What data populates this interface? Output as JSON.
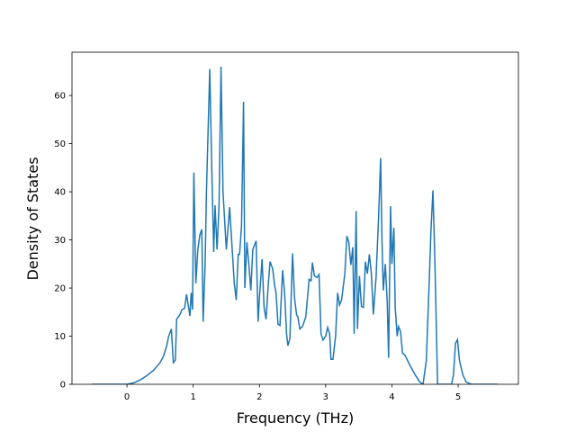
{
  "chart_data": {
    "type": "line",
    "xlabel": "Frequency (THz)",
    "ylabel": "Density of States",
    "xlim": [
      -0.83,
      5.91
    ],
    "ylim": [
      0,
      69
    ],
    "xticks": [
      0,
      1,
      2,
      3,
      4,
      5
    ],
    "yticks": [
      0,
      10,
      20,
      30,
      40,
      50,
      60
    ],
    "color": "#1f77b4",
    "x": [
      -0.53,
      0,
      0.1,
      0.2,
      0.3,
      0.4,
      0.5,
      0.55,
      0.6,
      0.63,
      0.67,
      0.7,
      0.73,
      0.75,
      0.8,
      0.83,
      0.87,
      0.9,
      0.93,
      0.95,
      0.97,
      0.99,
      1.01,
      1.04,
      1.07,
      1.1,
      1.13,
      1.15,
      1.18,
      1.2,
      1.25,
      1.28,
      1.31,
      1.33,
      1.36,
      1.39,
      1.42,
      1.45,
      1.5,
      1.55,
      1.58,
      1.62,
      1.65,
      1.68,
      1.7,
      1.73,
      1.76,
      1.78,
      1.81,
      1.84,
      1.87,
      1.9,
      1.95,
      1.98,
      2.0,
      2.04,
      2.07,
      2.1,
      2.13,
      2.16,
      2.2,
      2.23,
      2.25,
      2.28,
      2.31,
      2.35,
      2.38,
      2.41,
      2.43,
      2.46,
      2.5,
      2.53,
      2.56,
      2.58,
      2.61,
      2.65,
      2.7,
      2.75,
      2.78,
      2.8,
      2.83,
      2.87,
      2.9,
      2.93,
      2.96,
      3.0,
      3.03,
      3.06,
      3.08,
      3.11,
      3.15,
      3.18,
      3.21,
      3.24,
      3.29,
      3.32,
      3.35,
      3.38,
      3.41,
      3.43,
      3.46,
      3.48,
      3.51,
      3.54,
      3.57,
      3.6,
      3.63,
      3.66,
      3.69,
      3.72,
      3.76,
      3.8,
      3.83,
      3.85,
      3.87,
      3.9,
      3.93,
      3.95,
      3.98,
      4.0,
      4.03,
      4.05,
      4.08,
      4.1,
      4.13,
      4.16,
      4.2,
      4.27,
      4.35,
      4.42,
      4.47,
      4.52,
      4.56,
      4.59,
      4.62,
      4.65,
      4.69,
      4.9,
      4.93,
      4.96,
      4.99,
      5.02,
      5.07,
      5.12,
      5.2,
      5.6
    ],
    "values": [
      0,
      0,
      0.3,
      0.9,
      1.8,
      2.9,
      4.5,
      5.8,
      8,
      10,
      11.5,
      4.5,
      5,
      13.5,
      14.5,
      15.5,
      15.8,
      18.7,
      16,
      14.2,
      19,
      15.5,
      44,
      21,
      28,
      31,
      32.2,
      13,
      25,
      40,
      65.5,
      45,
      27.5,
      37.2,
      28,
      37,
      66,
      40,
      28,
      36.8,
      30,
      21,
      17.5,
      27,
      27,
      33,
      58.7,
      20,
      29.5,
      25,
      19.5,
      28,
      29.8,
      13,
      18,
      26,
      16,
      13.5,
      20,
      25.5,
      24,
      20.5,
      19,
      12.5,
      12.2,
      23.7,
      19,
      10.5,
      8,
      9.5,
      27.2,
      18,
      14.5,
      14,
      11.5,
      12,
      14,
      21.8,
      21.5,
      25.3,
      22.5,
      22.2,
      22.8,
      10.5,
      9.2,
      10,
      11.8,
      10.5,
      5.2,
      5.2,
      10,
      19,
      16.5,
      17.5,
      23,
      30.8,
      29.5,
      24.8,
      28.5,
      10.5,
      36,
      11.5,
      22.5,
      16.2,
      16,
      25.5,
      23,
      27,
      23,
      14.5,
      22,
      35,
      47,
      30,
      19.5,
      25,
      17,
      5.5,
      37,
      25,
      32.5,
      16,
      10,
      12,
      11,
      6.5,
      6,
      4,
      2,
      0.5,
      0,
      5,
      20,
      32,
      40.3,
      25,
      0,
      0,
      2,
      8.5,
      9.3,
      5,
      2,
      0.5,
      0,
      0
    ]
  }
}
